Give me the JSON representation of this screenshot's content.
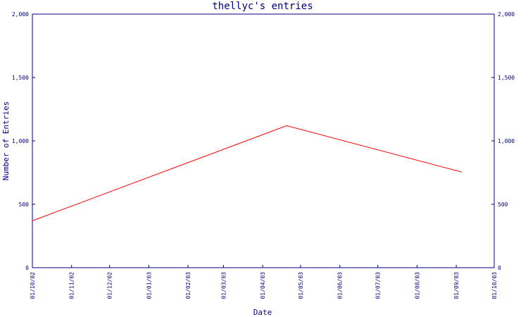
{
  "chart_data": {
    "type": "line",
    "title": "thellyc's entries",
    "xlabel": "Date",
    "ylabel": "Number of Entries",
    "ylim": [
      0,
      2000
    ],
    "y_ticks": [
      {
        "value": 0,
        "label": "0"
      },
      {
        "value": 500,
        "label": "500"
      },
      {
        "value": 1000,
        "label": "1,000"
      },
      {
        "value": 1500,
        "label": "1,500"
      },
      {
        "value": 2000,
        "label": "2,000"
      }
    ],
    "x_ticks": [
      "01/10/02",
      "01/11/02",
      "01/12/02",
      "01/01/03",
      "01/02/03",
      "01/03/03",
      "01/04/03",
      "01/05/03",
      "01/06/03",
      "01/07/03",
      "01/08/03",
      "01/09/03",
      "01/10/03"
    ],
    "series": [
      {
        "color": "#ff0000",
        "points": [
          {
            "x": "01/10/02",
            "y": 370
          },
          {
            "x": "20/04/03",
            "y": 1120
          },
          {
            "x": "05/09/03",
            "y": 755
          }
        ]
      }
    ],
    "grid": false,
    "right_axis": true
  },
  "colors": {
    "axis": "#000080",
    "line": "#ff0000",
    "background": "#ffffff"
  }
}
